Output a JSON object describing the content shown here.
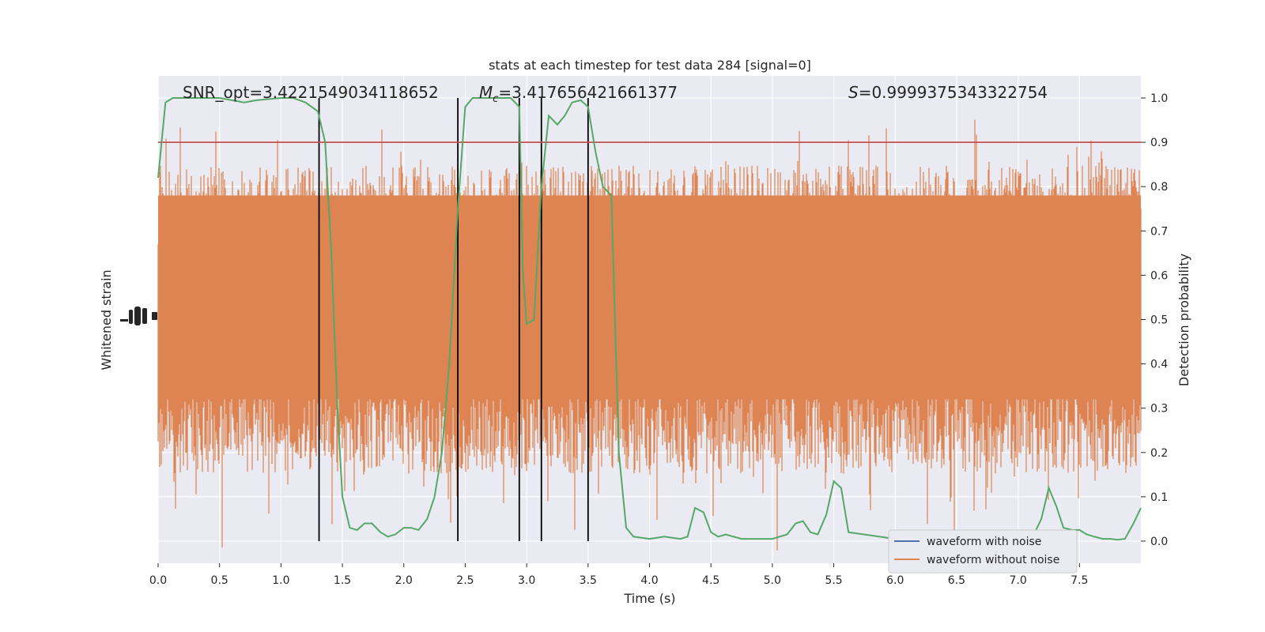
{
  "chart_data": {
    "type": "line",
    "title": "stats at each timestep for test data 284 [signal=0]",
    "xlabel": "Time (s)",
    "ylabel_left": "Whitened strain",
    "ylabel_right": "Detection probability",
    "xlim": [
      0.0,
      8.0
    ],
    "ylim_right": [
      -0.05,
      1.05
    ],
    "x_ticks": [
      0.0,
      0.5,
      1.0,
      1.5,
      2.0,
      2.5,
      3.0,
      3.5,
      4.0,
      4.5,
      5.0,
      5.5,
      6.0,
      6.5,
      7.0,
      7.5
    ],
    "x_tick_labels": [
      "0.0",
      "0.5",
      "1.0",
      "1.5",
      "2.0",
      "2.5",
      "3.0",
      "3.5",
      "4.0",
      "4.5",
      "5.0",
      "5.5",
      "6.0",
      "6.5",
      "7.0",
      "7.5"
    ],
    "y_right_ticks": [
      0.0,
      0.1,
      0.2,
      0.3,
      0.4,
      0.5,
      0.6,
      0.7,
      0.8,
      0.9,
      1.0
    ],
    "y_right_tick_labels": [
      "0.0",
      "0.1",
      "0.2",
      "0.3",
      "0.4",
      "0.5",
      "0.6",
      "0.7",
      "0.8",
      "0.9",
      "1.0"
    ],
    "annotations": {
      "snr": "SNR_opt=3.4221549034118652",
      "mc_symbol": "M",
      "mc_sub": "c",
      "mc_value": "=3.417656421661377",
      "s_symbol": "S",
      "s_value": "=0.9999375343322754"
    },
    "threshold": 0.9,
    "vertical_lines": [
      1.31,
      2.44,
      2.94,
      3.12,
      3.5
    ],
    "series": [
      {
        "name": "waveform with noise",
        "color": "#4c72b0",
        "values": []
      },
      {
        "name": "waveform without noise",
        "color": "#dd8452",
        "values": []
      },
      {
        "name": "",
        "color": "#55a868",
        "x": [
          0.0,
          0.06,
          0.12,
          0.25,
          0.5,
          0.7,
          0.8,
          1.0,
          1.1,
          1.2,
          1.3,
          1.36,
          1.41,
          1.46,
          1.5,
          1.56,
          1.62,
          1.68,
          1.74,
          1.81,
          1.87,
          1.93,
          2.0,
          2.06,
          2.12,
          2.19,
          2.25,
          2.31,
          2.37,
          2.44,
          2.5,
          2.56,
          2.62,
          2.75,
          2.87,
          2.94,
          2.97,
          3.0,
          3.06,
          3.12,
          3.18,
          3.25,
          3.31,
          3.37,
          3.44,
          3.5,
          3.56,
          3.62,
          3.69,
          3.75,
          3.81,
          3.87,
          4.0,
          4.12,
          4.25,
          4.31,
          4.37,
          4.44,
          4.5,
          4.56,
          4.62,
          4.75,
          5.0,
          5.12,
          5.19,
          5.25,
          5.31,
          5.37,
          5.44,
          5.5,
          5.56,
          5.62,
          6.0,
          6.5,
          7.0,
          7.12,
          7.19,
          7.25,
          7.31,
          7.37,
          7.44,
          7.5,
          7.56,
          7.62,
          7.69,
          7.75,
          7.81,
          7.87,
          7.94,
          8.0
        ],
        "values": [
          0.82,
          0.99,
          1.0,
          1.0,
          1.0,
          0.99,
          0.995,
          1.0,
          1.0,
          0.99,
          0.97,
          0.9,
          0.65,
          0.3,
          0.1,
          0.03,
          0.025,
          0.04,
          0.04,
          0.02,
          0.01,
          0.015,
          0.03,
          0.03,
          0.025,
          0.05,
          0.1,
          0.2,
          0.4,
          0.75,
          0.98,
          1.0,
          1.0,
          1.0,
          1.0,
          0.98,
          0.6,
          0.49,
          0.5,
          0.8,
          0.96,
          0.94,
          0.96,
          0.99,
          0.995,
          0.98,
          0.88,
          0.8,
          0.78,
          0.2,
          0.03,
          0.01,
          0.005,
          0.01,
          0.005,
          0.01,
          0.075,
          0.065,
          0.02,
          0.01,
          0.015,
          0.005,
          0.005,
          0.015,
          0.04,
          0.045,
          0.02,
          0.015,
          0.06,
          0.135,
          0.12,
          0.02,
          0.005,
          0.003,
          0.003,
          0.01,
          0.05,
          0.12,
          0.08,
          0.03,
          0.025,
          0.025,
          0.015,
          0.01,
          0.005,
          0.005,
          0.003,
          0.005,
          0.04,
          0.075
        ]
      },
      {
        "name": "",
        "color": "#c44e52",
        "values": [
          0.9,
          0.9
        ]
      }
    ],
    "legend": {
      "placement": "lower-right",
      "entries": [
        "waveform with noise",
        "waveform without noise"
      ]
    },
    "grid": true,
    "left_axis_tick_labels": "overlapping, illegible"
  }
}
